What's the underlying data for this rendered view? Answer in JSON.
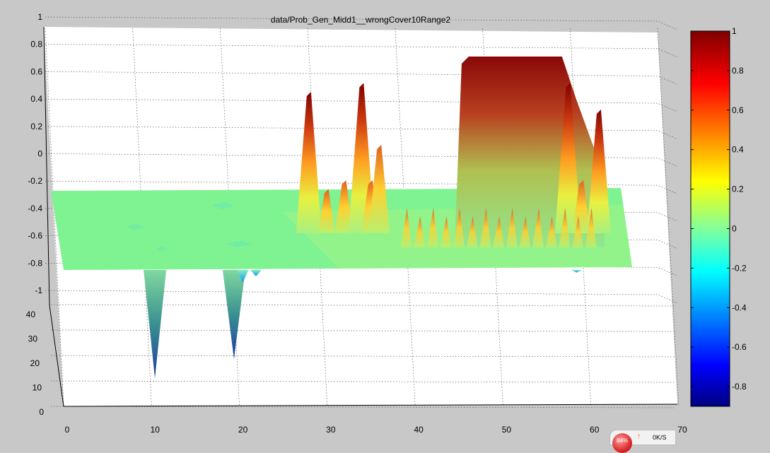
{
  "chart_data": {
    "type": "surface",
    "title": "data/Prob_Gen_Midd1__wrongCover10Range2",
    "xlim": [
      0,
      70
    ],
    "ylim": [
      0,
      40
    ],
    "zlim": [
      -1,
      1
    ],
    "grid": true,
    "x_ticks": [
      "0",
      "10",
      "20",
      "30",
      "40",
      "50",
      "60",
      "70"
    ],
    "y_ticks": [
      "0",
      "10",
      "20",
      "30",
      "40"
    ],
    "z_ticks": [
      "-1",
      "-0.8",
      "-0.6",
      "-0.4",
      "-0.2",
      "0",
      "0.2",
      "0.4",
      "0.6",
      "0.8",
      "1"
    ],
    "colorbar": {
      "colormap": "jet",
      "range": [
        -0.9,
        1
      ],
      "ticks": [
        "1",
        "0.8",
        "0.6",
        "0.4",
        "0.2",
        "0",
        "-0.2",
        "-0.4",
        "-0.6",
        "-0.8"
      ]
    },
    "peaks": [
      {
        "x": 27.5,
        "z": 0.6
      },
      {
        "x": 29.5,
        "z": 0.0
      },
      {
        "x": 31.5,
        "z": 0.1
      },
      {
        "x": 33.5,
        "z": 0.65
      },
      {
        "x": 34.5,
        "z": 0.1
      },
      {
        "x": 35.5,
        "z": 0.3
      },
      {
        "x": 46.5,
        "z": 0.95
      },
      {
        "x": 48,
        "z": 1.0
      },
      {
        "x": 50,
        "z": 1.0
      },
      {
        "x": 52,
        "z": 1.0
      },
      {
        "x": 54,
        "z": 1.0
      },
      {
        "x": 55.5,
        "z": 1.0
      },
      {
        "x": 57,
        "z": 0.65
      },
      {
        "x": 58.5,
        "z": 0.1
      },
      {
        "x": 60.5,
        "z": 0.5
      }
    ],
    "troughs": [
      {
        "x": 9.5,
        "z": -0.85
      },
      {
        "x": 18.5,
        "z": -0.7
      },
      {
        "x": 19.5,
        "z": -0.1
      },
      {
        "x": 21,
        "z": -0.05
      },
      {
        "x": 57.5,
        "z": -0.02
      }
    ]
  },
  "taskbar": {
    "percent": "84%",
    "rate": "0K/S"
  }
}
